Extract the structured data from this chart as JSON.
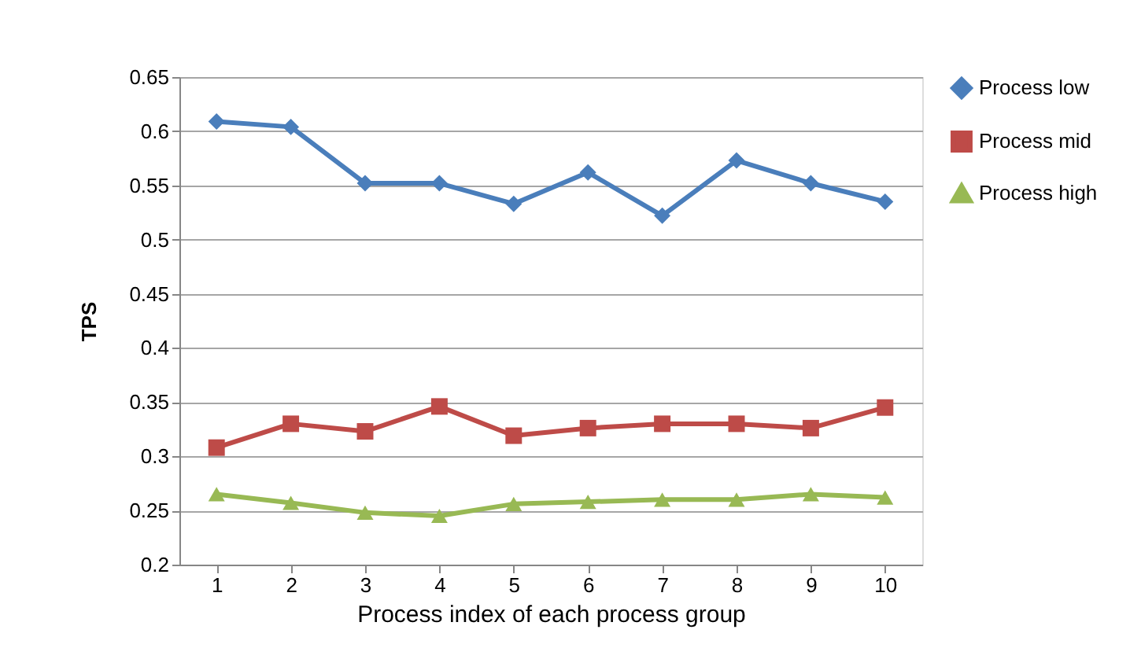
{
  "chart_data": {
    "type": "line",
    "xlabel": "Process index of each process group",
    "ylabel": "TPS",
    "categories": [
      "1",
      "2",
      "3",
      "4",
      "5",
      "6",
      "7",
      "8",
      "9",
      "10"
    ],
    "series": [
      {
        "name": "Process low",
        "color": "#4a7ebb",
        "marker": "diamond",
        "values": [
          0.609,
          0.604,
          0.552,
          0.552,
          0.533,
          0.562,
          0.522,
          0.573,
          0.552,
          0.535
        ]
      },
      {
        "name": "Process mid",
        "color": "#be4b48",
        "marker": "square",
        "values": [
          0.308,
          0.33,
          0.323,
          0.346,
          0.319,
          0.326,
          0.33,
          0.33,
          0.326,
          0.345
        ]
      },
      {
        "name": "Process high",
        "color": "#98b954",
        "marker": "triangle",
        "values": [
          0.265,
          0.257,
          0.248,
          0.245,
          0.256,
          0.258,
          0.26,
          0.26,
          0.265,
          0.262
        ]
      }
    ],
    "ylim": [
      0.2,
      0.65
    ],
    "yticks": [
      0.2,
      0.25,
      0.3,
      0.35,
      0.4,
      0.45,
      0.5,
      0.55,
      0.6,
      0.65
    ],
    "grid": "y",
    "legend": "right",
    "line_style": "solid"
  }
}
